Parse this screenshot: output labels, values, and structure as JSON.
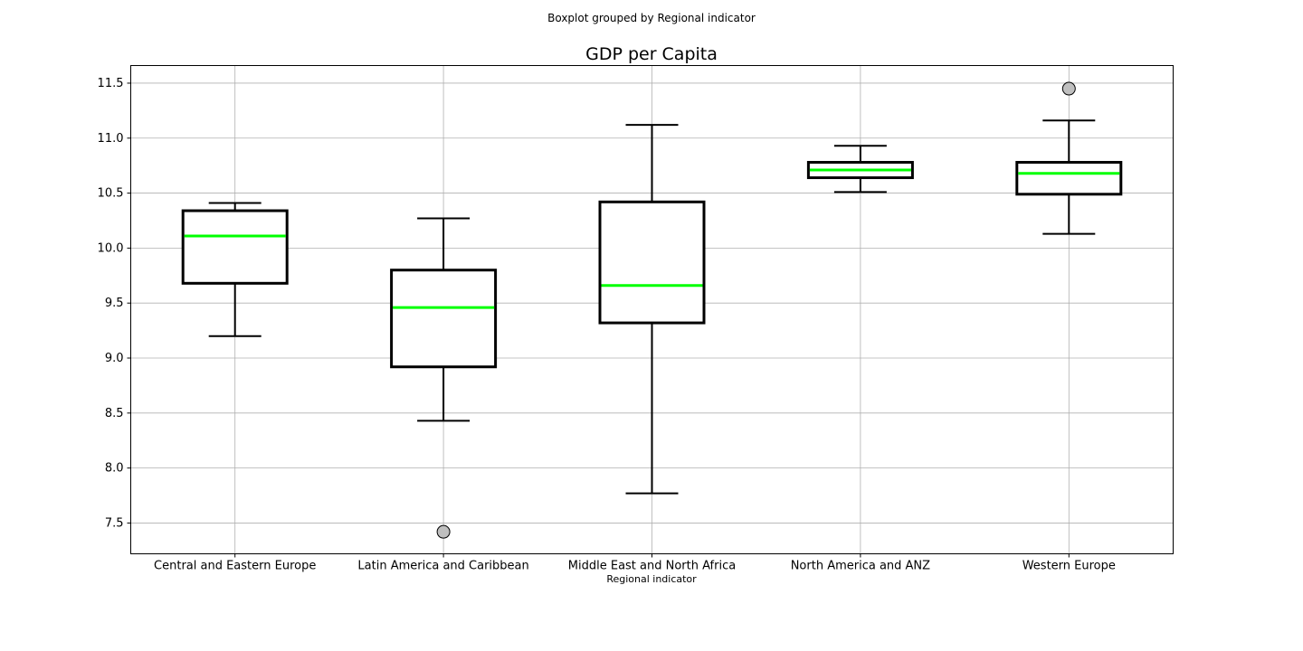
{
  "chart_data": {
    "type": "boxplot",
    "suptitle": "Boxplot grouped by Regional indicator",
    "title": "GDP per Capita",
    "xlabel": "Regional indicator",
    "ylabel": "",
    "ylim": [
      7.22,
      11.66
    ],
    "yticks": [
      "7.5",
      "8.0",
      "8.5",
      "9.0",
      "9.5",
      "10.0",
      "10.5",
      "11.0",
      "11.5"
    ],
    "grid": true,
    "categories": [
      "Central and Eastern Europe",
      "Latin America and Caribbean",
      "Middle East and North Africa",
      "North America and ANZ",
      "Western Europe"
    ],
    "boxes": [
      {
        "whislo": 9.2,
        "q1": 9.68,
        "med": 10.11,
        "q3": 10.34,
        "whishi": 10.41,
        "fliers": []
      },
      {
        "whislo": 8.43,
        "q1": 8.92,
        "med": 9.46,
        "q3": 9.8,
        "whishi": 10.27,
        "fliers": [
          7.42
        ]
      },
      {
        "whislo": 7.77,
        "q1": 9.32,
        "med": 9.66,
        "q3": 10.42,
        "whishi": 11.12,
        "fliers": []
      },
      {
        "whislo": 10.51,
        "q1": 10.64,
        "med": 10.71,
        "q3": 10.78,
        "whishi": 10.93,
        "fliers": []
      },
      {
        "whislo": 10.13,
        "q1": 10.49,
        "med": 10.68,
        "q3": 10.78,
        "whishi": 11.16,
        "fliers": [
          11.45
        ]
      }
    ],
    "colors": {
      "box": "#000000",
      "median": "#00ff00",
      "flier_fill": "#bfbfbf",
      "grid": "#b0b0b0"
    }
  }
}
